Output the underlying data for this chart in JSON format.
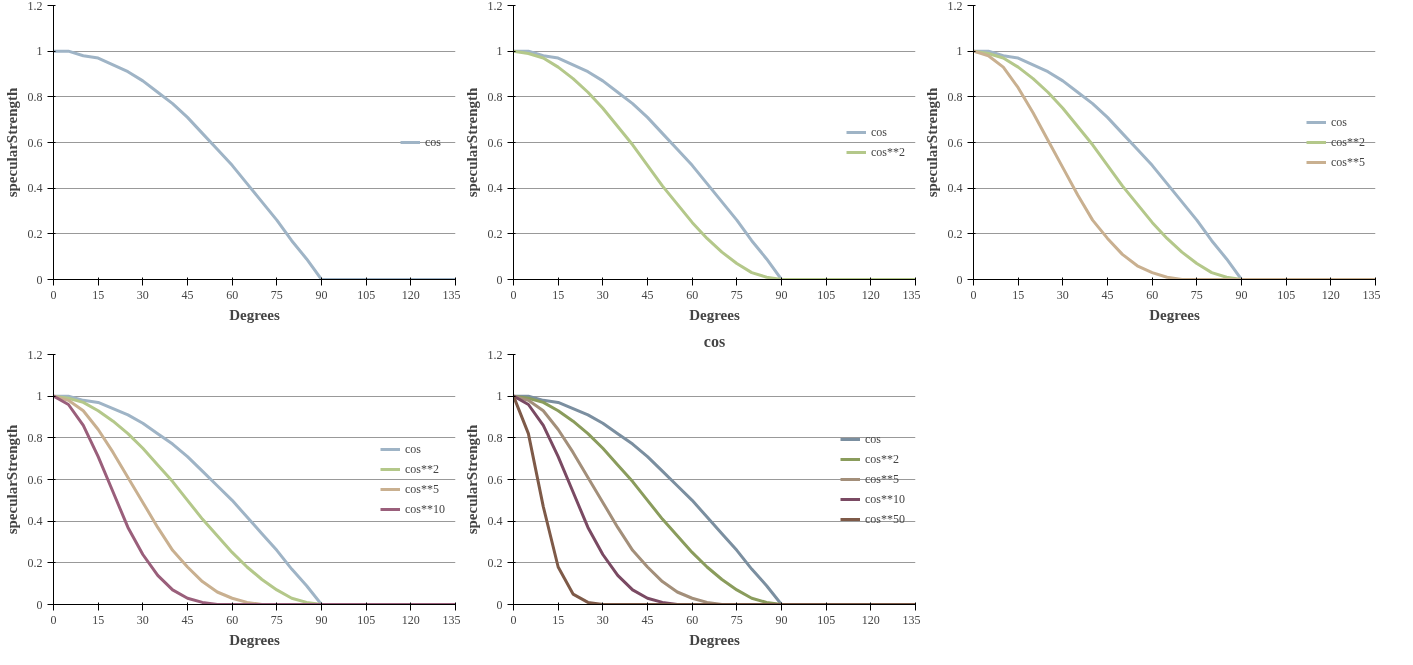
{
  "chart_data": [
    {
      "type": "line",
      "xlabel": "Degrees",
      "ylabel": "specularStrength",
      "x": [
        0,
        5,
        10,
        15,
        20,
        25,
        30,
        35,
        40,
        45,
        50,
        55,
        60,
        65,
        70,
        75,
        80,
        85,
        90,
        95,
        100,
        105,
        110,
        115,
        120,
        125,
        130,
        135
      ],
      "xlim": [
        0,
        135
      ],
      "xticks": [
        0,
        15,
        30,
        45,
        60,
        75,
        90,
        105,
        120,
        135
      ],
      "ylim": [
        0,
        1.2
      ],
      "yticks": [
        0,
        0.2,
        0.4,
        0.6,
        0.8,
        1,
        1.2
      ],
      "grid": "y",
      "legend": "right",
      "line_style": "solid",
      "series": [
        {
          "name": "cos",
          "color": "#9fb4c6",
          "values": [
            1,
            1,
            0.98,
            0.97,
            0.94,
            0.91,
            0.87,
            0.82,
            0.77,
            0.71,
            0.64,
            0.57,
            0.5,
            0.42,
            0.34,
            0.26,
            0.17,
            0.09,
            0,
            0,
            0,
            0,
            0,
            0,
            0,
            0,
            0,
            0
          ]
        }
      ]
    },
    {
      "type": "line",
      "xlabel": "Degrees",
      "ylabel": "specularStrength",
      "x": [
        0,
        5,
        10,
        15,
        20,
        25,
        30,
        35,
        40,
        45,
        50,
        55,
        60,
        65,
        70,
        75,
        80,
        85,
        90,
        95,
        100,
        105,
        110,
        115,
        120,
        125,
        130,
        135
      ],
      "xlim": [
        0,
        135
      ],
      "xticks": [
        0,
        15,
        30,
        45,
        60,
        75,
        90,
        105,
        120,
        135
      ],
      "ylim": [
        0,
        1.2
      ],
      "yticks": [
        0,
        0.2,
        0.4,
        0.6,
        0.8,
        1,
        1.2
      ],
      "grid": "y",
      "legend": "right",
      "line_style": "solid",
      "series": [
        {
          "name": "cos",
          "color": "#9fb4c6",
          "values": [
            1,
            1,
            0.98,
            0.97,
            0.94,
            0.91,
            0.87,
            0.82,
            0.77,
            0.71,
            0.64,
            0.57,
            0.5,
            0.42,
            0.34,
            0.26,
            0.17,
            0.09,
            0,
            0,
            null,
            null,
            null,
            null,
            null,
            null,
            null,
            null
          ]
        },
        {
          "name": "cos**2",
          "color": "#b4c88a",
          "values": [
            1,
            0.99,
            0.97,
            0.93,
            0.88,
            0.82,
            0.75,
            0.67,
            0.59,
            0.5,
            0.41,
            0.33,
            0.25,
            0.18,
            0.12,
            0.07,
            0.03,
            0.01,
            0,
            0,
            0,
            0,
            0,
            0,
            0,
            0,
            0,
            0
          ]
        }
      ]
    },
    {
      "type": "line",
      "xlabel": "Degrees",
      "ylabel": "specularStrength",
      "x": [
        0,
        5,
        10,
        15,
        20,
        25,
        30,
        35,
        40,
        45,
        50,
        55,
        60,
        65,
        70,
        75,
        80,
        85,
        90,
        95,
        100,
        105,
        110,
        115,
        120,
        125,
        130,
        135
      ],
      "xlim": [
        0,
        135
      ],
      "xticks": [
        0,
        15,
        30,
        45,
        60,
        75,
        90,
        105,
        120,
        135
      ],
      "ylim": [
        0,
        1.2
      ],
      "yticks": [
        0,
        0.2,
        0.4,
        0.6,
        0.8,
        1,
        1.2
      ],
      "grid": "y",
      "legend": "right",
      "line_style": "solid",
      "series": [
        {
          "name": "cos",
          "color": "#9fb4c6",
          "values": [
            1,
            1,
            0.98,
            0.97,
            0.94,
            0.91,
            0.87,
            0.82,
            0.77,
            0.71,
            0.64,
            0.57,
            0.5,
            0.42,
            0.34,
            0.26,
            0.17,
            0.09,
            0,
            0,
            null,
            null,
            null,
            null,
            null,
            null,
            null,
            null
          ]
        },
        {
          "name": "cos**2",
          "color": "#b4c88a",
          "values": [
            1,
            0.99,
            0.97,
            0.93,
            0.88,
            0.82,
            0.75,
            0.67,
            0.59,
            0.5,
            0.41,
            0.33,
            0.25,
            0.18,
            0.12,
            0.07,
            0.03,
            0.01,
            0,
            0,
            null,
            null,
            null,
            null,
            null,
            null,
            null,
            null
          ]
        },
        {
          "name": "cos**5",
          "color": "#c9b090",
          "values": [
            1,
            0.98,
            0.93,
            0.84,
            0.73,
            0.61,
            0.49,
            0.37,
            0.26,
            0.18,
            0.11,
            0.06,
            0.03,
            0.01,
            0,
            0,
            0,
            0,
            0,
            0,
            0,
            0,
            0,
            0,
            0,
            0,
            0,
            0
          ]
        }
      ]
    },
    {
      "type": "line",
      "xlabel": "Degrees",
      "ylabel": "specularStrength",
      "x": [
        0,
        5,
        10,
        15,
        20,
        25,
        30,
        35,
        40,
        45,
        50,
        55,
        60,
        65,
        70,
        75,
        80,
        85,
        90,
        95,
        100,
        105,
        110,
        115,
        120,
        125,
        130,
        135
      ],
      "xlim": [
        0,
        135
      ],
      "xticks": [
        0,
        15,
        30,
        45,
        60,
        75,
        90,
        105,
        120,
        135
      ],
      "ylim": [
        0,
        1.2
      ],
      "yticks": [
        0,
        0.2,
        0.4,
        0.6,
        0.8,
        1,
        1.2
      ],
      "grid": "y",
      "legend": "right",
      "line_style": "solid",
      "series": [
        {
          "name": "cos",
          "color": "#9fb4c6",
          "values": [
            1,
            1,
            0.98,
            0.97,
            0.94,
            0.91,
            0.87,
            0.82,
            0.77,
            0.71,
            0.64,
            0.57,
            0.5,
            0.42,
            0.34,
            0.26,
            0.17,
            0.09,
            0,
            0,
            null,
            null,
            null,
            null,
            null,
            null,
            null,
            null
          ]
        },
        {
          "name": "cos**2",
          "color": "#b4c88a",
          "values": [
            1,
            0.99,
            0.97,
            0.93,
            0.88,
            0.82,
            0.75,
            0.67,
            0.59,
            0.5,
            0.41,
            0.33,
            0.25,
            0.18,
            0.12,
            0.07,
            0.03,
            0.01,
            0,
            0,
            null,
            null,
            null,
            null,
            null,
            null,
            null,
            null
          ]
        },
        {
          "name": "cos**5",
          "color": "#c9b090",
          "values": [
            1,
            0.98,
            0.93,
            0.84,
            0.73,
            0.61,
            0.49,
            0.37,
            0.26,
            0.18,
            0.11,
            0.06,
            0.03,
            0.01,
            0,
            0,
            0,
            0,
            0,
            0,
            null,
            null,
            null,
            null,
            null,
            null,
            null,
            null
          ]
        },
        {
          "name": "cos**10",
          "color": "#9a5f7b",
          "values": [
            1,
            0.96,
            0.86,
            0.71,
            0.54,
            0.37,
            0.24,
            0.14,
            0.07,
            0.03,
            0.01,
            0,
            0,
            0,
            0,
            0,
            0,
            0,
            0,
            0,
            0,
            0,
            0,
            0,
            0,
            0,
            0,
            0
          ]
        }
      ]
    },
    {
      "type": "line",
      "title": "cos",
      "xlabel": "Degrees",
      "ylabel": "specularStrength",
      "x": [
        0,
        5,
        10,
        15,
        20,
        25,
        30,
        35,
        40,
        45,
        50,
        55,
        60,
        65,
        70,
        75,
        80,
        85,
        90,
        95,
        100,
        105,
        110,
        115,
        120,
        125,
        130,
        135
      ],
      "xlim": [
        0,
        135
      ],
      "xticks": [
        0,
        15,
        30,
        45,
        60,
        75,
        90,
        105,
        120,
        135
      ],
      "ylim": [
        0,
        1.2
      ],
      "yticks": [
        0,
        0.2,
        0.4,
        0.6,
        0.8,
        1,
        1.2
      ],
      "grid": "y",
      "legend": "right",
      "line_style": "solid",
      "series": [
        {
          "name": "cos",
          "color": "#7b8fa0",
          "values": [
            1,
            1,
            0.98,
            0.97,
            0.94,
            0.91,
            0.87,
            0.82,
            0.77,
            0.71,
            0.64,
            0.57,
            0.5,
            0.42,
            0.34,
            0.26,
            0.17,
            0.09,
            0,
            0,
            null,
            null,
            null,
            null,
            null,
            null,
            null,
            null
          ]
        },
        {
          "name": "cos**2",
          "color": "#8a9c5c",
          "values": [
            1,
            0.99,
            0.97,
            0.93,
            0.88,
            0.82,
            0.75,
            0.67,
            0.59,
            0.5,
            0.41,
            0.33,
            0.25,
            0.18,
            0.12,
            0.07,
            0.03,
            0.01,
            0,
            0,
            null,
            null,
            null,
            null,
            null,
            null,
            null,
            null
          ]
        },
        {
          "name": "cos**5",
          "color": "#a38f7a",
          "values": [
            1,
            0.98,
            0.93,
            0.84,
            0.73,
            0.61,
            0.49,
            0.37,
            0.26,
            0.18,
            0.11,
            0.06,
            0.03,
            0.01,
            0,
            0,
            0,
            0,
            0,
            0,
            null,
            null,
            null,
            null,
            null,
            null,
            null,
            null
          ]
        },
        {
          "name": "cos**10",
          "color": "#7a4a63",
          "values": [
            1,
            0.96,
            0.86,
            0.71,
            0.54,
            0.37,
            0.24,
            0.14,
            0.07,
            0.03,
            0.01,
            0,
            0,
            0,
            0,
            0,
            0,
            0,
            0,
            0,
            null,
            null,
            null,
            null,
            null,
            null,
            null,
            null
          ]
        },
        {
          "name": "cos**50",
          "color": "#7e5a48",
          "values": [
            1,
            0.82,
            0.47,
            0.18,
            0.05,
            0.01,
            0,
            0,
            0,
            0,
            0,
            0,
            0,
            0,
            0,
            0,
            0,
            0,
            0,
            0,
            0,
            0,
            0,
            0,
            0,
            0,
            0,
            0
          ]
        }
      ]
    }
  ]
}
